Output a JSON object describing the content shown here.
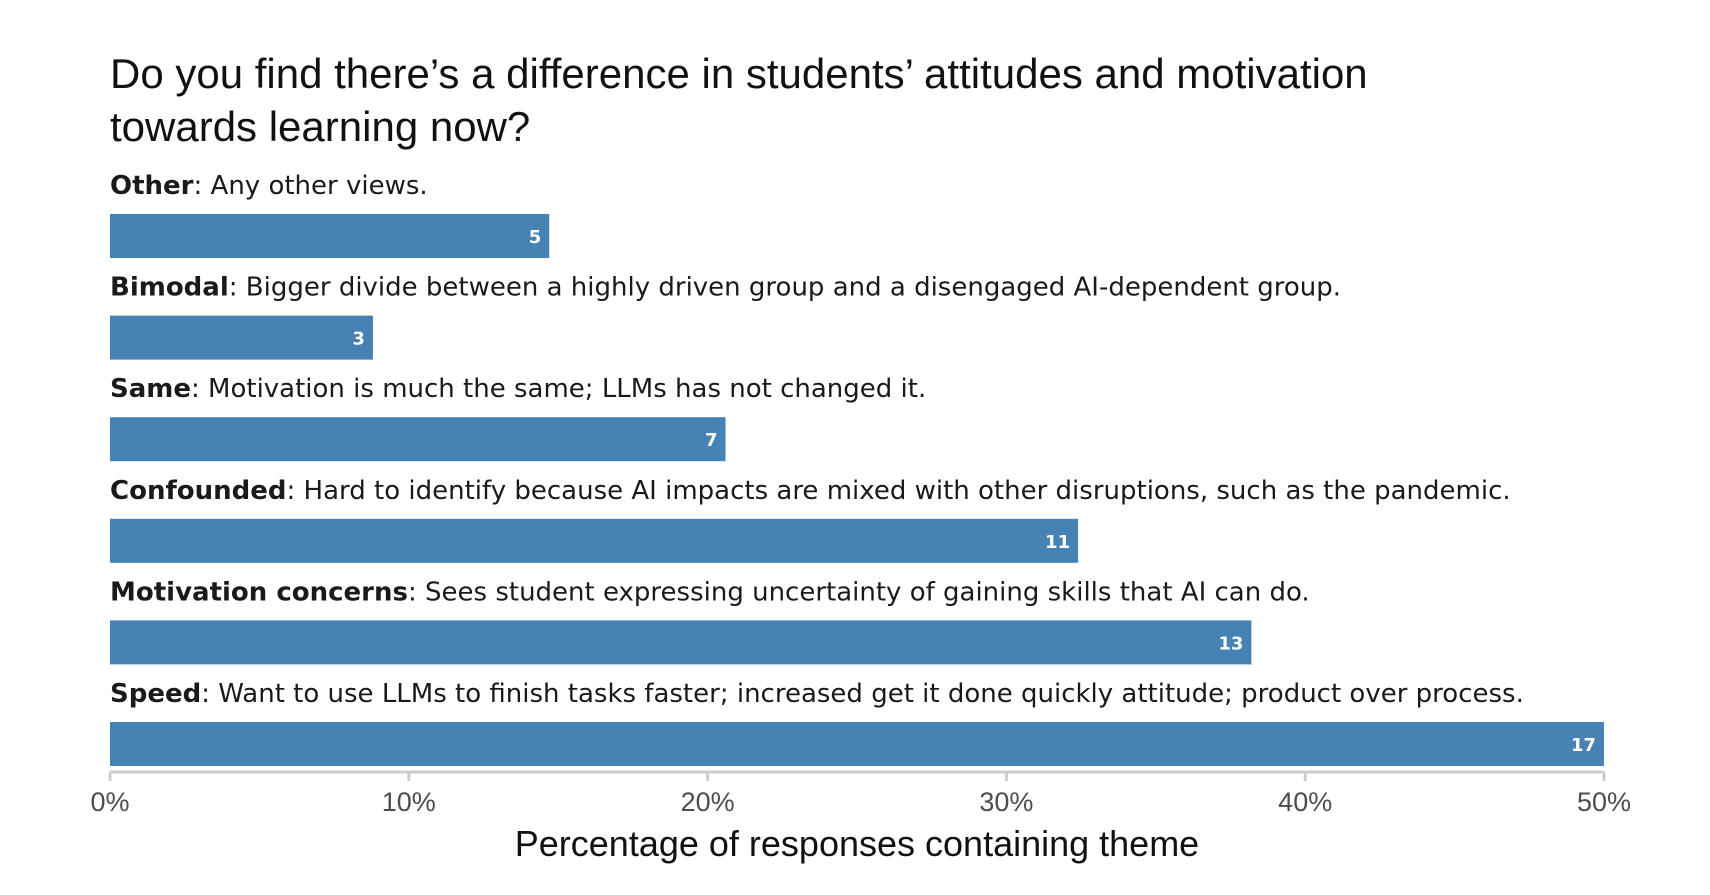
{
  "chart_data": {
    "type": "bar",
    "orientation": "horizontal",
    "title": "Do you find there’s a difference in students’ attitudes and motivation towards learning now?",
    "title_lines": [
      "Do you find there’s a difference in students’ attitudes and motivation",
      "towards learning now?"
    ],
    "xlabel": "Percentage of responses containing theme",
    "ylabel": "",
    "xlim": [
      0,
      50
    ],
    "x_ticks": [
      0,
      10,
      20,
      30,
      40,
      50
    ],
    "x_tick_labels": [
      "0%",
      "10%",
      "20%",
      "30%",
      "40%",
      "50%"
    ],
    "grid": false,
    "legend": "none",
    "bar_color": "#4682b4",
    "categories": [
      {
        "name": "Other",
        "separator": ": ",
        "description": "Any other views.",
        "count": 5,
        "percent": 14.7
      },
      {
        "name": "Bimodal",
        "separator": ": ",
        "description": "Bigger divide between a highly driven group and a disengaged AI-dependent group.",
        "count": 3,
        "percent": 8.8
      },
      {
        "name": "Same",
        "separator": ": ",
        "description": "Motivation is much the same; LLMs has not changed it.",
        "count": 7,
        "percent": 20.6
      },
      {
        "name": "Confounded",
        "separator": ": ",
        "description": "Hard to identify because AI impacts are mixed with other disruptions, such as the pandemic.",
        "count": 11,
        "percent": 32.4
      },
      {
        "name": "Motivation concerns",
        "separator": ": ",
        "description": "Sees student expressing uncertainty of gaining skills that AI can do.",
        "count": 13,
        "percent": 38.2
      },
      {
        "name": "Speed",
        "separator": ": ",
        "description": "Want to use LLMs to finish tasks faster; increased get it done quickly attitude; product over process.",
        "count": 17,
        "percent": 50.0
      }
    ]
  }
}
